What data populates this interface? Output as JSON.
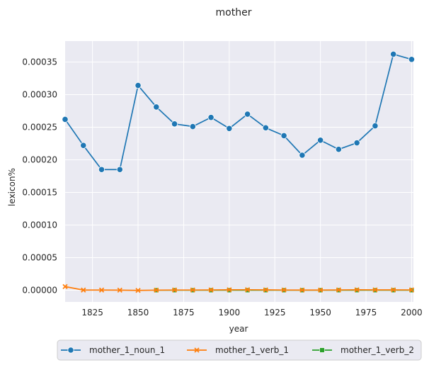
{
  "chart_data": {
    "type": "line",
    "title": "mother",
    "xlabel": "year",
    "ylabel": "lexicon%",
    "xlim": [
      1810,
      2001
    ],
    "ylim": [
      -1.8e-05,
      0.000382
    ],
    "xticks": [
      1825,
      1850,
      1875,
      1900,
      1925,
      1950,
      1975,
      2000
    ],
    "yticks": [
      0.0,
      5e-05,
      0.0001,
      0.00015,
      0.0002,
      0.00025,
      0.0003,
      0.00035
    ],
    "ytick_labels": [
      "0.00000",
      "0.00005",
      "0.00010",
      "0.00015",
      "0.00020",
      "0.00025",
      "0.00030",
      "0.00035"
    ],
    "grid": true,
    "legend_position": "bottom-outside",
    "series": [
      {
        "name": "mother_1_noun_1",
        "color": "#1f77b4",
        "marker": "circle",
        "x": [
          1810,
          1820,
          1830,
          1840,
          1850,
          1860,
          1870,
          1880,
          1890,
          1900,
          1910,
          1920,
          1930,
          1940,
          1950,
          1960,
          1970,
          1980,
          1990,
          2000
        ],
        "y": [
          0.000262,
          0.000222,
          0.000185,
          0.000185,
          0.000314,
          0.000281,
          0.000255,
          0.000251,
          0.000265,
          0.000248,
          0.00027,
          0.000249,
          0.000237,
          0.000207,
          0.00023,
          0.000216,
          0.000226,
          0.000252,
          0.000362,
          0.000354
        ]
      },
      {
        "name": "mother_1_verb_1",
        "color": "#ff7f0e",
        "marker": "x",
        "x": [
          1810,
          1820,
          1830,
          1840,
          1850,
          1860,
          1870,
          1880,
          1890,
          1900,
          1910,
          1920,
          1930,
          1940,
          1950,
          1960,
          1970,
          1980,
          1990,
          2000
        ],
        "y": [
          5.5e-06,
          2e-07,
          2e-07,
          1e-07,
          -3e-07,
          1e-07,
          3e-07,
          3e-07,
          4e-07,
          6e-07,
          7e-07,
          5e-07,
          3e-07,
          2e-07,
          2e-07,
          4e-07,
          6e-07,
          5e-07,
          5e-07,
          4e-07
        ]
      },
      {
        "name": "mother_1_verb_2",
        "color": "#2ca02c",
        "marker": "square",
        "x": [
          1860,
          1870,
          1880,
          1890,
          1900,
          1910,
          1920,
          1930,
          1940,
          1950,
          1960,
          1970,
          1980,
          1990,
          2000
        ],
        "y": [
          0.0,
          0.0,
          0.0,
          0.0,
          0.0,
          0.0,
          0.0,
          0.0,
          0.0,
          0.0,
          0.0,
          0.0,
          0.0,
          0.0,
          0.0
        ]
      }
    ]
  }
}
